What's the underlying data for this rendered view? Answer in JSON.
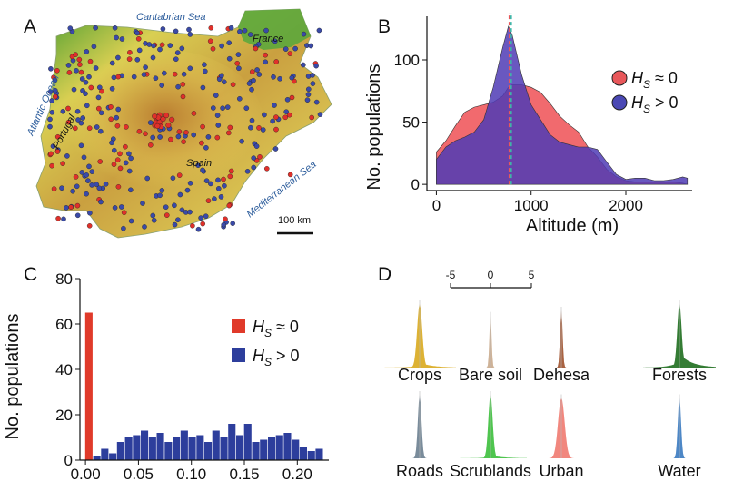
{
  "panels": {
    "a": "A",
    "b": "B",
    "c": "C",
    "d": "D"
  },
  "map": {
    "seas": [
      "Cantabrian Sea",
      "Atlantic Ocean",
      "Mediterranean Sea"
    ],
    "countries": [
      "France",
      "Portugal",
      "Spain"
    ],
    "scale_label": "100 km",
    "colors": {
      "hs0": "#e0302a",
      "hs_pos": "#3a4aa8",
      "land_low": "#2f8a2a",
      "land_mid": "#e8d35a",
      "land_high": "#b5782e",
      "sea": "#ffffff"
    }
  },
  "legend": {
    "b": [
      {
        "label": "H_S ≈ 0",
        "color": "#e8575a"
      },
      {
        "label": "H_S > 0",
        "color": "#4a48b4"
      }
    ],
    "c": [
      {
        "label": "H_S ≈ 0",
        "color": "#e03a2a"
      },
      {
        "label": "H_S > 0",
        "color": "#2d3e9c"
      }
    ]
  },
  "chart_data": [
    {
      "panel": "B",
      "type": "area",
      "xlabel": "Altitude (m)",
      "ylabel": "No. populations",
      "xticks": [
        0,
        1000,
        2000
      ],
      "yticks": [
        0,
        50,
        100
      ],
      "xlim": [
        -100,
        2700
      ],
      "ylim": [
        -5,
        135
      ],
      "series": [
        {
          "name": "H_S ≈ 0",
          "color": "#f05a5e",
          "x": [
            0,
            100,
            200,
            300,
            400,
            500,
            600,
            700,
            760,
            800,
            900,
            1000,
            1100,
            1200,
            1300,
            1400,
            1500,
            1600,
            1700,
            1800,
            1900,
            2000,
            2100,
            2200,
            2300,
            2400,
            2500,
            2600,
            2650
          ],
          "y": [
            26,
            35,
            47,
            58,
            62,
            64,
            66,
            71,
            78,
            80,
            80,
            78,
            74,
            65,
            55,
            48,
            42,
            30,
            22,
            12,
            6,
            3,
            2,
            2,
            2,
            2,
            2,
            1,
            0
          ]
        },
        {
          "name": "H_S > 0",
          "color": "#4f3bb5",
          "x": [
            0,
            100,
            200,
            300,
            400,
            500,
            600,
            700,
            760,
            800,
            900,
            1000,
            1100,
            1200,
            1300,
            1400,
            1500,
            1600,
            1700,
            1800,
            1900,
            2000,
            2100,
            2200,
            2300,
            2400,
            2500,
            2600,
            2650
          ],
          "y": [
            20,
            30,
            35,
            38,
            42,
            52,
            78,
            110,
            127,
            120,
            88,
            64,
            52,
            40,
            34,
            32,
            30,
            30,
            28,
            18,
            8,
            4,
            5,
            5,
            3,
            3,
            4,
            6,
            5
          ]
        }
      ],
      "vlines": [
        {
          "x": 770,
          "color": "#e8575a",
          "style": "dashed"
        },
        {
          "x": 790,
          "color": "#3fb6a8",
          "style": "dashed"
        }
      ],
      "legend_position": "right"
    },
    {
      "panel": "C",
      "type": "bar",
      "xlabel": "",
      "ylabel": "No. populations",
      "xticks": [
        "0.00",
        "0.05",
        "0.10",
        "0.15",
        "0.20"
      ],
      "yticks": [
        0,
        20,
        40,
        60,
        80
      ],
      "ylim": [
        0,
        80
      ],
      "bin_width": 0.0075,
      "series": [
        {
          "name": "H_S ≈ 0",
          "color": "#e03a2a",
          "x": [
            0.0
          ],
          "values": [
            65
          ]
        },
        {
          "name": "H_S > 0",
          "color": "#2d3e9c",
          "x": [
            0.0075,
            0.015,
            0.0225,
            0.03,
            0.0375,
            0.045,
            0.0525,
            0.06,
            0.0675,
            0.075,
            0.0825,
            0.09,
            0.0975,
            0.105,
            0.1125,
            0.12,
            0.1275,
            0.135,
            0.1425,
            0.15,
            0.1575,
            0.165,
            0.1725,
            0.18,
            0.1875,
            0.195,
            0.2025,
            0.21,
            0.2175
          ],
          "values": [
            2,
            5,
            3,
            8,
            10,
            11,
            13,
            10,
            12,
            8,
            10,
            13,
            10,
            11,
            8,
            13,
            10,
            16,
            11,
            16,
            8,
            9,
            10,
            11,
            12,
            9,
            6,
            4,
            5
          ]
        }
      ],
      "legend_position": "right"
    },
    {
      "panel": "D",
      "type": "area",
      "scale_ticks": [
        "-5",
        "0",
        "5"
      ],
      "series": [
        {
          "name": "Crops",
          "color": "#d9aa1e",
          "peak": 1.0,
          "width": 0.07,
          "right_tail": 0.08
        },
        {
          "name": "Bare soil",
          "color": "#c9aa8c",
          "peak": 0.82,
          "width": 0.03,
          "right_tail": 0.0
        },
        {
          "name": "Dehesa",
          "color": "#a0522d",
          "peak": 0.9,
          "width": 0.035,
          "right_tail": 0.0
        },
        {
          "name": "Forests",
          "color": "#1e6e1e",
          "peak": 1.0,
          "width": 0.06,
          "right_tail": 0.22
        },
        {
          "name": "Roads",
          "color": "#6b7f90",
          "peak": 1.0,
          "width": 0.05,
          "right_tail": 0.0
        },
        {
          "name": "Scrublands",
          "color": "#3cbf3c",
          "peak": 1.0,
          "width": 0.06,
          "right_tail": 0.05
        },
        {
          "name": "Urban",
          "color": "#f07a70",
          "peak": 0.95,
          "width": 0.09,
          "right_tail": 0.0
        },
        {
          "name": "Water",
          "color": "#3a7ac0",
          "peak": 0.95,
          "width": 0.045,
          "right_tail": 0.0
        }
      ]
    }
  ]
}
